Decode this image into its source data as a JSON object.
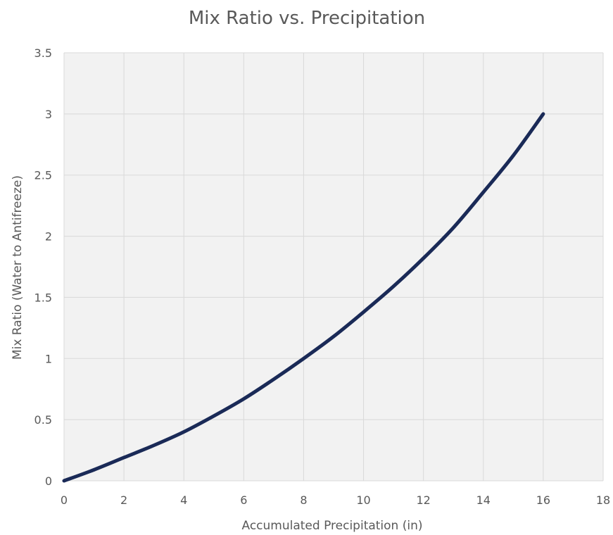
{
  "chart_data": {
    "type": "line",
    "title": "Mix Ratio vs. Precipitation",
    "xlabel": "Accumulated Precipitation (in)",
    "ylabel": "Mix Ratio (Water to Antifreeze)",
    "xlim": [
      0,
      18
    ],
    "ylim": [
      0,
      3.5
    ],
    "xticks": [
      "0",
      "2",
      "4",
      "6",
      "8",
      "10",
      "12",
      "14",
      "16",
      "18"
    ],
    "yticks": [
      "0",
      "0.5",
      "1",
      "1.5",
      "2",
      "2.5",
      "3",
      "3.5"
    ],
    "grid": true,
    "legend": "none",
    "colors": {
      "line": "#1a2a57",
      "plot_bg": "#f2f2f2",
      "grid": "#d9d9d9",
      "text": "#595959"
    },
    "series": [
      {
        "x": [
          0,
          1,
          2,
          3,
          4,
          5,
          6,
          7,
          8,
          9,
          10,
          11,
          12,
          13,
          14,
          15,
          16
        ],
        "values": [
          0,
          0.09,
          0.19,
          0.29,
          0.4,
          0.53,
          0.67,
          0.83,
          1.0,
          1.18,
          1.38,
          1.59,
          1.82,
          2.07,
          2.36,
          2.66,
          3.0
        ]
      }
    ]
  }
}
